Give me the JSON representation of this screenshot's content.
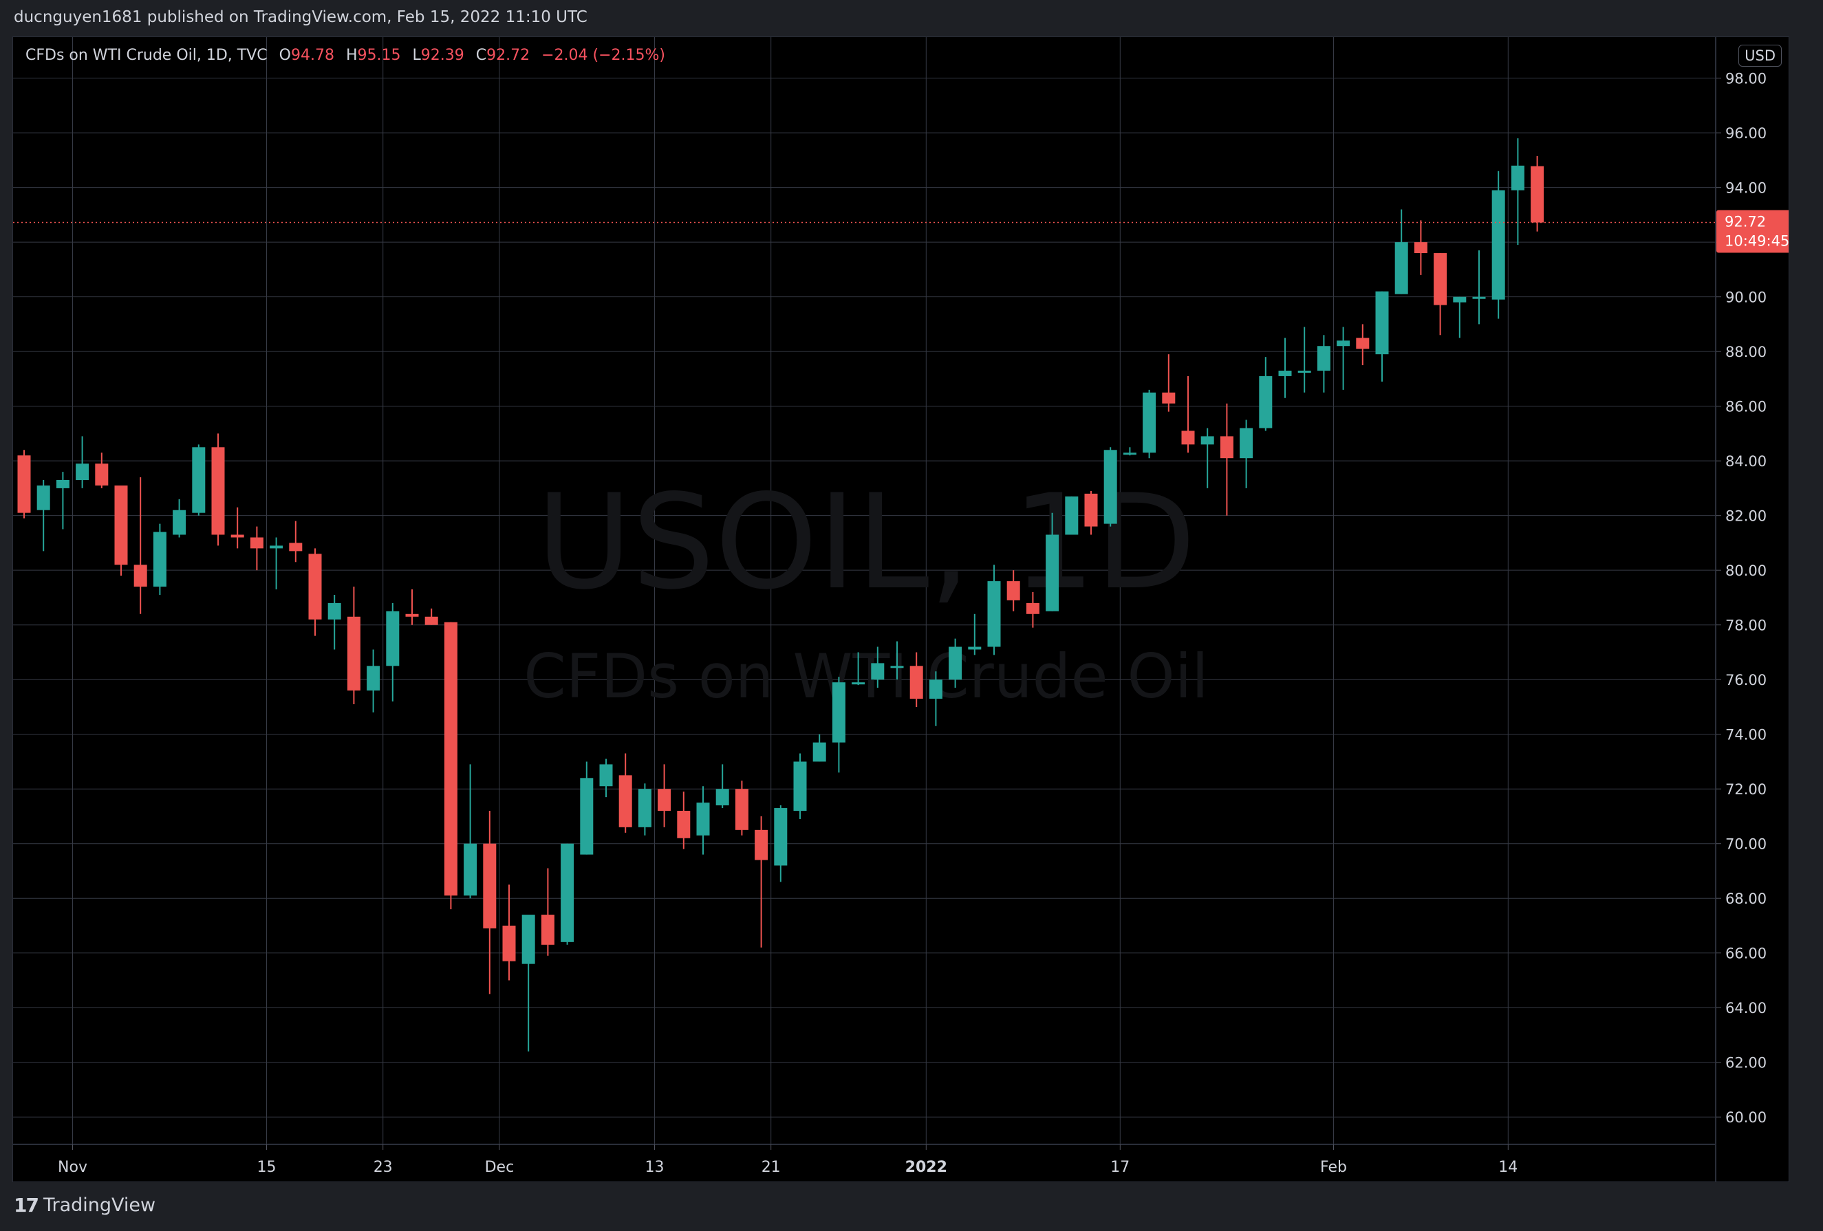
{
  "header": {
    "published_line": "ducnguyen1681 published on TradingView.com, Feb 15, 2022 11:10 UTC"
  },
  "legend": {
    "symbol_line": "CFDs on WTI Crude Oil, 1D, TVC",
    "o_label": "O",
    "o_value": "94.78",
    "h_label": "H",
    "h_value": "95.15",
    "l_label": "L",
    "l_value": "92.39",
    "c_label": "C",
    "c_value": "92.72",
    "change": "−2.04 (−2.15%)"
  },
  "currency_badge": "USD",
  "watermark": {
    "symbol": "USOIL, 1D",
    "name": "CFDs on WTI Crude Oil"
  },
  "last_price": {
    "price": "92.72",
    "countdown": "10:49:45"
  },
  "footer": {
    "brand": "TradingView",
    "logo_icon": "tradingview-logo-icon"
  },
  "colors": {
    "up": "#26a69a",
    "down": "#ef5350",
    "background": "#000000",
    "grid": "#363a45",
    "text": "#d1d4dc"
  },
  "chart_data": {
    "type": "candlestick",
    "title": "CFDs on WTI Crude Oil, 1D, TVC",
    "ylim": [
      59,
      99.5
    ],
    "y_ticks": [
      "60.00",
      "62.00",
      "64.00",
      "66.00",
      "68.00",
      "70.00",
      "72.00",
      "74.00",
      "76.00",
      "78.00",
      "80.00",
      "82.00",
      "84.00",
      "86.00",
      "88.00",
      "90.00",
      "92.00",
      "94.00",
      "96.00",
      "98.00"
    ],
    "x_tick_labels": [
      {
        "label": "Nov",
        "index": 2.5
      },
      {
        "label": "15",
        "index": 12.5
      },
      {
        "label": "23",
        "index": 18.5
      },
      {
        "label": "Dec",
        "index": 24.5
      },
      {
        "label": "13",
        "index": 32.5
      },
      {
        "label": "21",
        "index": 38.5
      },
      {
        "label": "2022",
        "index": 46.5
      },
      {
        "label": "17",
        "index": 56.5
      },
      {
        "label": "Feb",
        "index": 67.5
      },
      {
        "label": "14",
        "index": 76.5
      }
    ],
    "current_price": 92.72,
    "candles": [
      {
        "o": 84.2,
        "h": 84.4,
        "l": 81.9,
        "c": 82.1
      },
      {
        "o": 82.2,
        "h": 83.3,
        "l": 80.7,
        "c": 83.1
      },
      {
        "o": 83.0,
        "h": 83.6,
        "l": 81.5,
        "c": 83.3
      },
      {
        "o": 83.3,
        "h": 84.9,
        "l": 83.0,
        "c": 83.9
      },
      {
        "o": 83.9,
        "h": 84.3,
        "l": 83.0,
        "c": 83.1
      },
      {
        "o": 83.1,
        "h": 83.1,
        "l": 79.8,
        "c": 80.2
      },
      {
        "o": 80.2,
        "h": 83.4,
        "l": 78.4,
        "c": 79.4
      },
      {
        "o": 79.4,
        "h": 81.7,
        "l": 79.1,
        "c": 81.4
      },
      {
        "o": 81.3,
        "h": 82.6,
        "l": 81.2,
        "c": 82.2
      },
      {
        "o": 82.1,
        "h": 84.6,
        "l": 82.0,
        "c": 84.5
      },
      {
        "o": 84.5,
        "h": 85.0,
        "l": 80.9,
        "c": 81.3
      },
      {
        "o": 81.3,
        "h": 82.3,
        "l": 80.8,
        "c": 81.2
      },
      {
        "o": 81.2,
        "h": 81.6,
        "l": 80.0,
        "c": 80.8
      },
      {
        "o": 80.8,
        "h": 81.2,
        "l": 79.3,
        "c": 80.9
      },
      {
        "o": 81.0,
        "h": 81.8,
        "l": 80.3,
        "c": 80.7
      },
      {
        "o": 80.6,
        "h": 80.8,
        "l": 77.6,
        "c": 78.2
      },
      {
        "o": 78.2,
        "h": 79.1,
        "l": 77.1,
        "c": 78.8
      },
      {
        "o": 78.3,
        "h": 79.4,
        "l": 75.1,
        "c": 75.6
      },
      {
        "o": 75.6,
        "h": 77.1,
        "l": 74.8,
        "c": 76.5
      },
      {
        "o": 76.5,
        "h": 78.8,
        "l": 75.2,
        "c": 78.5
      },
      {
        "o": 78.4,
        "h": 79.3,
        "l": 78.0,
        "c": 78.3
      },
      {
        "o": 78.3,
        "h": 78.6,
        "l": 78.0,
        "c": 78.0
      },
      {
        "o": 78.1,
        "h": 78.1,
        "l": 67.6,
        "c": 68.1
      },
      {
        "o": 68.1,
        "h": 72.9,
        "l": 68.0,
        "c": 70.0
      },
      {
        "o": 70.0,
        "h": 71.2,
        "l": 64.5,
        "c": 66.9
      },
      {
        "o": 67.0,
        "h": 68.5,
        "l": 65.0,
        "c": 65.7
      },
      {
        "o": 65.6,
        "h": 67.3,
        "l": 62.4,
        "c": 67.4
      },
      {
        "o": 67.4,
        "h": 69.1,
        "l": 65.9,
        "c": 66.3
      },
      {
        "o": 66.4,
        "h": 70.0,
        "l": 66.3,
        "c": 70.0
      },
      {
        "o": 69.6,
        "h": 73.0,
        "l": 69.6,
        "c": 72.4
      },
      {
        "o": 72.1,
        "h": 73.1,
        "l": 71.7,
        "c": 72.9
      },
      {
        "o": 72.5,
        "h": 73.3,
        "l": 70.4,
        "c": 70.6
      },
      {
        "o": 70.6,
        "h": 72.2,
        "l": 70.3,
        "c": 72.0
      },
      {
        "o": 72.0,
        "h": 72.9,
        "l": 70.6,
        "c": 71.2
      },
      {
        "o": 71.2,
        "h": 71.9,
        "l": 69.8,
        "c": 70.2
      },
      {
        "o": 70.3,
        "h": 72.1,
        "l": 69.6,
        "c": 71.5
      },
      {
        "o": 71.4,
        "h": 72.9,
        "l": 71.3,
        "c": 72.0
      },
      {
        "o": 72.0,
        "h": 72.3,
        "l": 70.3,
        "c": 70.5
      },
      {
        "o": 70.5,
        "h": 71.0,
        "l": 66.2,
        "c": 69.4
      },
      {
        "o": 69.2,
        "h": 71.4,
        "l": 68.6,
        "c": 71.3
      },
      {
        "o": 71.2,
        "h": 73.3,
        "l": 70.9,
        "c": 73.0
      },
      {
        "o": 73.0,
        "h": 74.0,
        "l": 73.0,
        "c": 73.7
      },
      {
        "o": 73.7,
        "h": 76.1,
        "l": 72.6,
        "c": 75.9
      },
      {
        "o": 75.9,
        "h": 77.0,
        "l": 75.8,
        "c": 75.9
      },
      {
        "o": 76.0,
        "h": 77.2,
        "l": 75.7,
        "c": 76.6
      },
      {
        "o": 76.5,
        "h": 77.4,
        "l": 76.0,
        "c": 76.5
      },
      {
        "o": 76.5,
        "h": 77.0,
        "l": 75.0,
        "c": 75.3
      },
      {
        "o": 75.3,
        "h": 76.3,
        "l": 74.3,
        "c": 76.0
      },
      {
        "o": 76.0,
        "h": 77.5,
        "l": 75.7,
        "c": 77.2
      },
      {
        "o": 77.1,
        "h": 78.4,
        "l": 76.9,
        "c": 77.2
      },
      {
        "o": 77.2,
        "h": 80.2,
        "l": 76.9,
        "c": 79.6
      },
      {
        "o": 79.6,
        "h": 80.0,
        "l": 78.5,
        "c": 78.9
      },
      {
        "o": 78.8,
        "h": 79.2,
        "l": 77.9,
        "c": 78.4
      },
      {
        "o": 78.5,
        "h": 82.1,
        "l": 78.5,
        "c": 81.3
      },
      {
        "o": 81.3,
        "h": 82.7,
        "l": 81.3,
        "c": 82.7
      },
      {
        "o": 82.8,
        "h": 82.9,
        "l": 81.3,
        "c": 81.6
      },
      {
        "o": 81.7,
        "h": 84.5,
        "l": 81.6,
        "c": 84.4
      },
      {
        "o": 84.3,
        "h": 84.5,
        "l": 84.2,
        "c": 84.3
      },
      {
        "o": 84.3,
        "h": 86.6,
        "l": 84.1,
        "c": 86.5
      },
      {
        "o": 86.5,
        "h": 87.9,
        "l": 85.8,
        "c": 86.1
      },
      {
        "o": 85.1,
        "h": 87.1,
        "l": 84.3,
        "c": 84.6
      },
      {
        "o": 84.6,
        "h": 85.2,
        "l": 83.0,
        "c": 84.9
      },
      {
        "o": 84.9,
        "h": 86.1,
        "l": 82.0,
        "c": 84.1
      },
      {
        "o": 84.1,
        "h": 85.5,
        "l": 83.0,
        "c": 85.2
      },
      {
        "o": 85.2,
        "h": 87.8,
        "l": 85.1,
        "c": 87.1
      },
      {
        "o": 87.1,
        "h": 88.5,
        "l": 86.3,
        "c": 87.3
      },
      {
        "o": 87.3,
        "h": 88.9,
        "l": 86.5,
        "c": 87.3
      },
      {
        "o": 87.3,
        "h": 88.6,
        "l": 86.5,
        "c": 88.2
      },
      {
        "o": 88.2,
        "h": 88.9,
        "l": 86.6,
        "c": 88.4
      },
      {
        "o": 88.5,
        "h": 89.0,
        "l": 87.5,
        "c": 88.1
      },
      {
        "o": 87.9,
        "h": 90.2,
        "l": 86.9,
        "c": 90.2
      },
      {
        "o": 90.1,
        "h": 93.2,
        "l": 90.1,
        "c": 92.0
      },
      {
        "o": 92.0,
        "h": 92.8,
        "l": 90.8,
        "c": 91.6
      },
      {
        "o": 91.6,
        "h": 91.6,
        "l": 88.6,
        "c": 89.7
      },
      {
        "o": 89.8,
        "h": 90.0,
        "l": 88.5,
        "c": 90.0
      },
      {
        "o": 90.0,
        "h": 91.7,
        "l": 89.0,
        "c": 90.0
      },
      {
        "o": 89.9,
        "h": 94.6,
        "l": 89.2,
        "c": 93.9
      },
      {
        "o": 93.9,
        "h": 95.8,
        "l": 91.9,
        "c": 94.8
      },
      {
        "o": 94.78,
        "h": 95.15,
        "l": 92.39,
        "c": 92.72
      }
    ]
  }
}
